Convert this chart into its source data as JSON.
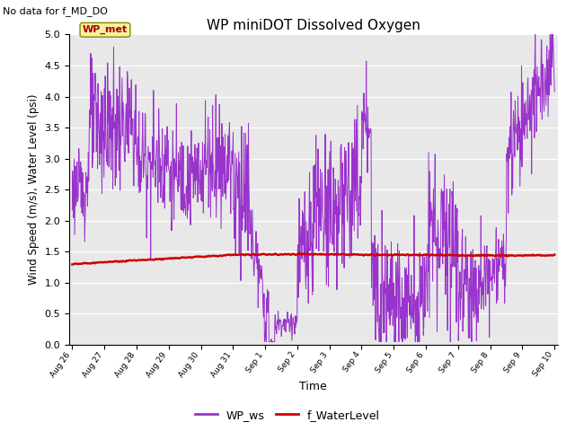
{
  "title": "WP miniDOT Dissolved Oxygen",
  "annotation": "No data for f_MD_DO",
  "ylabel": "Wind Speed (m/s), Water Level (psi)",
  "xlabel": "Time",
  "ylim": [
    0.0,
    5.0
  ],
  "yticks": [
    0.0,
    0.5,
    1.0,
    1.5,
    2.0,
    2.5,
    3.0,
    3.5,
    4.0,
    4.5,
    5.0
  ],
  "bg_color": "#e8e8e8",
  "wp_ws_color": "#9933cc",
  "f_wl_color": "#cc0000",
  "legend_label1": "WP_ws",
  "legend_label2": "f_WaterLevel",
  "box_label": "WP_met",
  "box_text_color": "#aa0000",
  "box_bg_color": "#f5f0a0",
  "box_edge_color": "#888800",
  "xtick_labels": [
    "Aug 26",
    "Aug 27",
    "Aug 28",
    "Aug 29",
    "Aug 30",
    "Aug 31",
    "Sep 1",
    "Sep 2",
    "Sep 3",
    "Sep 4",
    "Sep 5",
    "Sep 6",
    "Sep 7",
    "Sep 8",
    "Sep 9",
    "Sep 10"
  ],
  "xtick_vals": [
    0,
    1,
    2,
    3,
    4,
    5,
    6,
    7,
    8,
    9,
    10,
    11,
    12,
    13,
    14,
    15
  ]
}
